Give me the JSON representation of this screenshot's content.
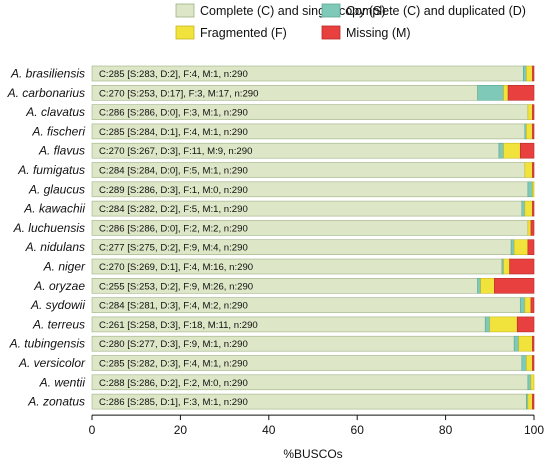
{
  "chart_data": {
    "type": "bar",
    "orientation": "horizontal",
    "stacked": true,
    "xlabel": "%BUSCOs",
    "xlim": [
      0,
      100
    ],
    "xticks": [
      0,
      20,
      40,
      60,
      80,
      100
    ],
    "total_genes": 290,
    "legend_position": "top",
    "segments": [
      {
        "key": "S",
        "label": "Complete (C) and single-copy (S)",
        "color": "#dde6c6",
        "stroke": "#9fb185"
      },
      {
        "key": "D",
        "label": "Complete (C) and duplicated (D)",
        "color": "#7fc9b8",
        "stroke": "#5aa897"
      },
      {
        "key": "F",
        "label": "Fragmented (F)",
        "color": "#f1e23c",
        "stroke": "#c8b820"
      },
      {
        "key": "M",
        "label": "Missing (M)",
        "color": "#e8403f",
        "stroke": "#b52a29"
      }
    ],
    "categories": [
      {
        "name": "A. brasiliensis",
        "S": 283,
        "D": 2,
        "F": 4,
        "M": 1,
        "label": "C:285 [S:283, D:2], F:4, M:1, n:290"
      },
      {
        "name": "A. carbonarius",
        "S": 253,
        "D": 17,
        "F": 3,
        "M": 17,
        "label": "C:270 [S:253, D:17], F:3, M:17, n:290"
      },
      {
        "name": "A. clavatus",
        "S": 286,
        "D": 0,
        "F": 3,
        "M": 1,
        "label": "C:286 [S:286, D:0], F:3, M:1, n:290"
      },
      {
        "name": "A. fischeri",
        "S": 284,
        "D": 1,
        "F": 4,
        "M": 1,
        "label": "C:285 [S:284, D:1], F:4, M:1, n:290"
      },
      {
        "name": "A. flavus",
        "S": 267,
        "D": 3,
        "F": 11,
        "M": 9,
        "label": "C:270 [S:267, D:3], F:11, M:9, n:290"
      },
      {
        "name": "A. fumigatus",
        "S": 284,
        "D": 0,
        "F": 5,
        "M": 1,
        "label": "C:284 [S:284, D:0], F:5, M:1, n:290"
      },
      {
        "name": "A. glaucus",
        "S": 286,
        "D": 3,
        "F": 1,
        "M": 0,
        "label": "C:289 [S:286, D:3], F:1, M:0, n:290"
      },
      {
        "name": "A. kawachii",
        "S": 282,
        "D": 2,
        "F": 5,
        "M": 1,
        "label": "C:284 [S:282, D:2], F:5, M:1, n:290"
      },
      {
        "name": "A. luchuensis",
        "S": 286,
        "D": 0,
        "F": 2,
        "M": 2,
        "label": "C:286 [S:286, D:0], F:2, M:2, n:290"
      },
      {
        "name": "A. nidulans",
        "S": 275,
        "D": 2,
        "F": 9,
        "M": 4,
        "label": "C:277 [S:275, D:2], F:9, M:4, n:290"
      },
      {
        "name": "A. niger",
        "S": 269,
        "D": 1,
        "F": 4,
        "M": 16,
        "label": "C:270 [S:269, D:1], F:4, M:16, n:290"
      },
      {
        "name": "A. oryzae",
        "S": 253,
        "D": 2,
        "F": 9,
        "M": 26,
        "label": "C:255 [S:253, D:2], F:9, M:26, n:290"
      },
      {
        "name": "A. sydowii",
        "S": 281,
        "D": 3,
        "F": 4,
        "M": 2,
        "label": "C:284 [S:281, D:3], F:4, M:2, n:290"
      },
      {
        "name": "A. terreus",
        "S": 258,
        "D": 3,
        "F": 18,
        "M": 11,
        "label": "C:261 [S:258, D:3], F:18, M:11, n:290"
      },
      {
        "name": "A. tubingensis",
        "S": 277,
        "D": 3,
        "F": 9,
        "M": 1,
        "label": "C:280 [S:277, D:3], F:9, M:1, n:290"
      },
      {
        "name": "A. versicolor",
        "S": 282,
        "D": 3,
        "F": 4,
        "M": 1,
        "label": "C:285 [S:282, D:3], F:4, M:1, n:290"
      },
      {
        "name": "A. wentii",
        "S": 286,
        "D": 2,
        "F": 2,
        "M": 0,
        "label": "C:288 [S:286, D:2], F:2, M:0, n:290"
      },
      {
        "name": "A. zonatus",
        "S": 285,
        "D": 1,
        "F": 3,
        "M": 1,
        "label": "C:286 [S:285, D:1], F:3, M:1, n:290"
      }
    ]
  }
}
